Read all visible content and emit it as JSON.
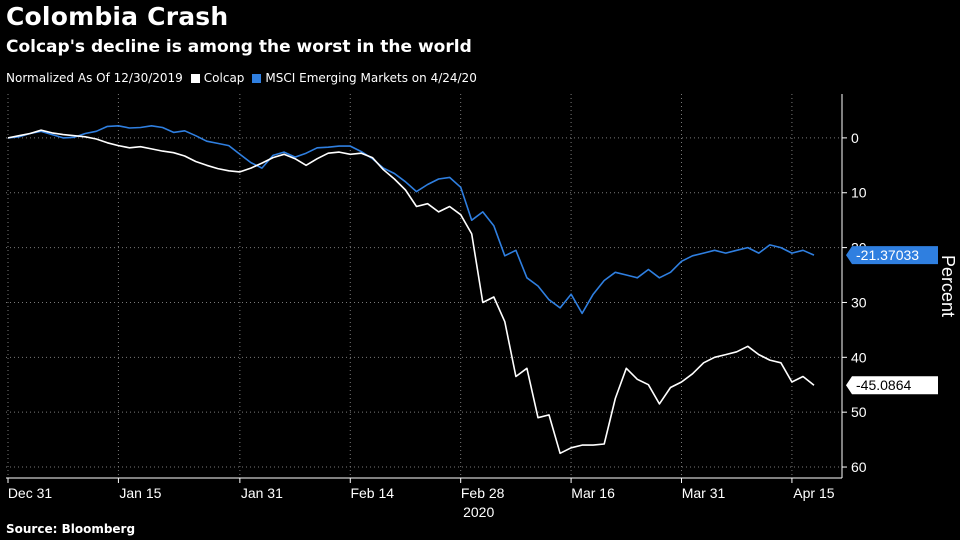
{
  "title": "Colombia Crash",
  "subtitle": "Colcap's decline is among the worst in the world",
  "legend": {
    "prefix": "Normalized As Of 12/30/2019",
    "items": [
      {
        "label": "Colcap",
        "color": "#ffffff"
      },
      {
        "label": "MSCI Emerging Markets on 4/24/20",
        "color": "#2f7fe0"
      }
    ]
  },
  "source": "Source: Bloomberg",
  "chart_data": {
    "type": "line",
    "ylabel": "Percent",
    "ylim": [
      -62,
      8
    ],
    "y_ticks": [
      0,
      -10,
      -20,
      -30,
      -40,
      -50,
      -60
    ],
    "y_tick_labels": [
      "0",
      "10",
      "20",
      "30",
      "40",
      "50",
      "60"
    ],
    "x_ticks": [
      "Dec 31",
      "Jan 15",
      "Jan 31",
      "Feb 14",
      "Feb 28",
      "Mar 16",
      "Mar 31",
      "Apr 15"
    ],
    "x_year_label": "2020",
    "grid": true,
    "series": [
      {
        "name": "MSCI Emerging Markets on 4/24/20",
        "color": "#2f7fe0",
        "last_label": "-21.37033",
        "values": [
          0,
          0.2,
          0.8,
          1.2,
          0.6,
          0,
          0.1,
          0.8,
          1.2,
          2.1,
          2.2,
          1.8,
          1.9,
          2.2,
          1.9,
          1.0,
          1.3,
          0.4,
          -0.6,
          -1.0,
          -1.4,
          -3.0,
          -4.5,
          -5.5,
          -3.2,
          -2.6,
          -3.5,
          -2.8,
          -1.8,
          -1.7,
          -1.5,
          -1.5,
          -2.5,
          -3.8,
          -5.5,
          -6.5,
          -8.0,
          -9.8,
          -8.5,
          -7.5,
          -7.2,
          -9.0,
          -15.0,
          -13.5,
          -16.0,
          -21.5,
          -20.5,
          -25.5,
          -27.0,
          -29.5,
          -31.0,
          -28.5,
          -32.0,
          -28.5,
          -26.0,
          -24.5,
          -25.0,
          -25.5,
          -24.0,
          -25.5,
          -24.5,
          -22.5,
          -21.5,
          -21.0,
          -20.5,
          -21.0,
          -20.5,
          -20.0,
          -21.0,
          -19.5,
          -20.0,
          -21.0,
          -20.5,
          -21.37
        ]
      },
      {
        "name": "Colcap",
        "color": "#ffffff",
        "last_label": "-45.0864",
        "values": [
          0,
          0.4,
          0.8,
          1.4,
          0.9,
          0.6,
          0.4,
          0.2,
          -0.2,
          -0.9,
          -1.4,
          -1.8,
          -1.6,
          -2.0,
          -2.4,
          -2.7,
          -3.3,
          -4.3,
          -5.0,
          -5.6,
          -6.0,
          -6.2,
          -5.5,
          -4.6,
          -3.6,
          -3.0,
          -3.8,
          -5.0,
          -3.8,
          -2.8,
          -2.6,
          -3.0,
          -2.8,
          -3.6,
          -5.8,
          -7.5,
          -9.5,
          -12.5,
          -12.0,
          -13.5,
          -12.5,
          -14.0,
          -17.5,
          -30.0,
          -29.0,
          -33.5,
          -43.5,
          -42.0,
          -51.0,
          -50.5,
          -57.5,
          -56.5,
          -56.0,
          -56.0,
          -55.8,
          -47.5,
          -42.0,
          -44.0,
          -45.0,
          -48.5,
          -45.5,
          -44.5,
          -43.0,
          -41.0,
          -40.0,
          -39.5,
          -39.0,
          -38.0,
          -39.5,
          -40.5,
          -41.0,
          -44.5,
          -43.5,
          -45.09
        ]
      }
    ]
  }
}
